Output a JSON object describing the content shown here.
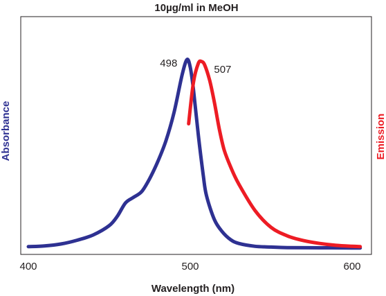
{
  "chart_data": {
    "type": "line",
    "title": "10µg/ml in MeOH",
    "xlabel": "Wavelength (nm)",
    "ylabel_left": "Absorbance",
    "ylabel_right": "Emission",
    "xlim": [
      400,
      605
    ],
    "ylim": [
      0,
      1.03
    ],
    "x_ticks": [
      400,
      500,
      600
    ],
    "grid": false,
    "series": [
      {
        "name": "Absorbance",
        "color": "#2e3192",
        "x": [
          400,
          410,
          420,
          430,
          440,
          450,
          455,
          460,
          465,
          470,
          475,
          480,
          485,
          490,
          495,
          498,
          500,
          502,
          505,
          508,
          510,
          515,
          520,
          525,
          530,
          540,
          550,
          560,
          580,
          600,
          605
        ],
        "y": [
          0.008,
          0.012,
          0.022,
          0.042,
          0.07,
          0.12,
          0.17,
          0.24,
          0.27,
          0.3,
          0.37,
          0.46,
          0.57,
          0.72,
          0.92,
          1.0,
          0.96,
          0.84,
          0.6,
          0.39,
          0.28,
          0.15,
          0.085,
          0.045,
          0.025,
          0.01,
          0.006,
          0.003,
          0.002,
          0.001,
          0.001
        ]
      },
      {
        "name": "Emission",
        "color": "#ed1c24",
        "x": [
          499,
          502,
          505,
          507,
          509,
          512,
          515,
          518,
          521,
          525,
          530,
          540,
          550,
          560,
          570,
          580,
          590,
          600,
          605
        ],
        "y": [
          0.66,
          0.88,
          0.98,
          0.99,
          0.97,
          0.89,
          0.77,
          0.63,
          0.52,
          0.43,
          0.34,
          0.2,
          0.11,
          0.065,
          0.04,
          0.025,
          0.015,
          0.01,
          0.008
        ]
      }
    ],
    "annotations": [
      {
        "text": "498",
        "x": 498,
        "y": 1.0
      },
      {
        "text": "507",
        "x": 507,
        "y": 0.99
      }
    ]
  }
}
